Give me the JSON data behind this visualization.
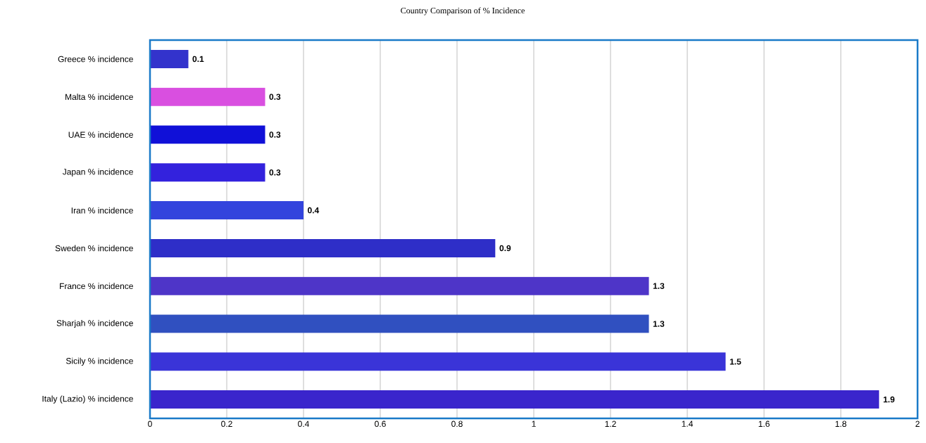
{
  "chart_data": {
    "type": "bar",
    "orientation": "horizontal",
    "title": "Country Comparison of % Incidence",
    "categories": [
      "Greece % incidence",
      "Malta % incidence",
      "UAE % incidence",
      "Japan % incidence",
      "Iran % incidence",
      "Sweden % incidence",
      "France % incidence",
      "Sharjah % incidence",
      "Sicily % incidence",
      "Italy (Lazio) % incidence"
    ],
    "values": [
      0.1,
      0.3,
      0.3,
      0.3,
      0.4,
      0.9,
      1.3,
      1.3,
      1.5,
      1.9
    ],
    "colors": [
      "#3333cc",
      "#d94fe0",
      "#1010d8",
      "#3322dd",
      "#3344dd",
      "#2e2ec8",
      "#4e35c8",
      "#3050c0",
      "#3a34d8",
      "#3a25cc"
    ],
    "xlim": [
      0,
      2
    ],
    "xticks": [
      0,
      0.2,
      0.4,
      0.6,
      0.8,
      1,
      1.2,
      1.4,
      1.6,
      1.8,
      2
    ],
    "grid": "x",
    "data_labels": true
  }
}
